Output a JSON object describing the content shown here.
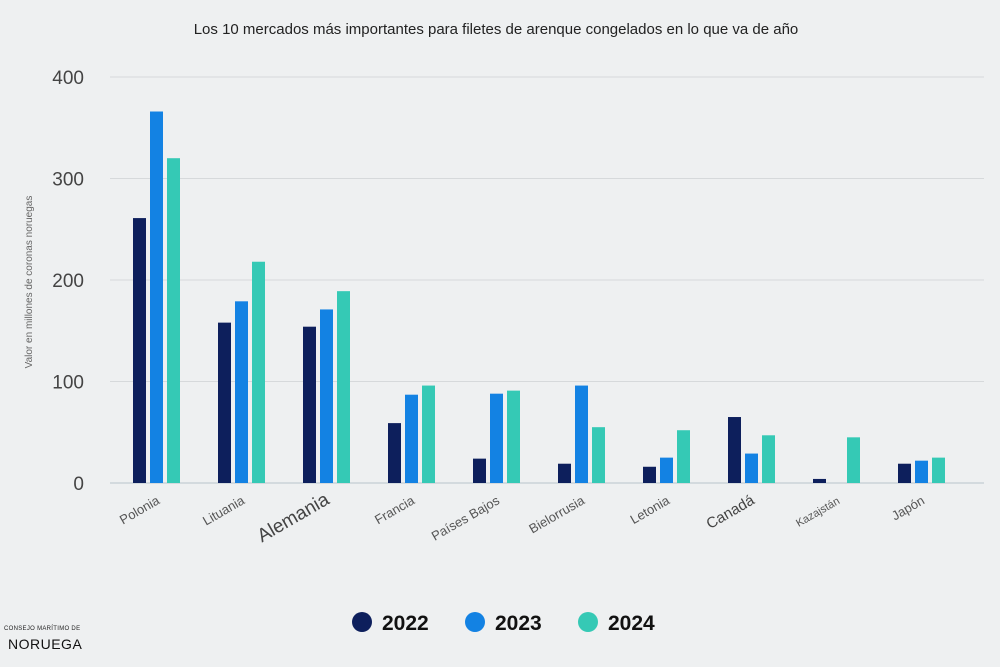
{
  "logo": {
    "line1": "CONSEJO MARÍTIMO DE",
    "line2": "NORUEGA"
  },
  "chart_data": {
    "type": "bar",
    "title": "Los 10 mercados más importantes para filetes de arenque congelados en lo que va de año",
    "ylabel": "Valor en millones de coronas noruegas",
    "xlabel": "",
    "ylim": [
      0,
      400
    ],
    "yticks": [
      0,
      100,
      200,
      300,
      400
    ],
    "grid": true,
    "legend_position": "bottom",
    "categories": [
      "Polonia",
      "Lituania",
      "Alemania",
      "Francia",
      "Países Bajos",
      "Bielorrusia",
      "Letonia",
      "Canadá",
      "Kazajstán",
      "Japón"
    ],
    "series": [
      {
        "name": "2022",
        "color": "#0d1f5c",
        "values": [
          261,
          158,
          154,
          59,
          24,
          19,
          16,
          65,
          4,
          19
        ]
      },
      {
        "name": "2023",
        "color": "#1382e3",
        "values": [
          366,
          179,
          171,
          87,
          88,
          96,
          25,
          29,
          0,
          22
        ]
      },
      {
        "name": "2024",
        "color": "#35c9b5",
        "values": [
          320,
          218,
          189,
          96,
          91,
          55,
          52,
          47,
          45,
          25
        ]
      }
    ]
  }
}
